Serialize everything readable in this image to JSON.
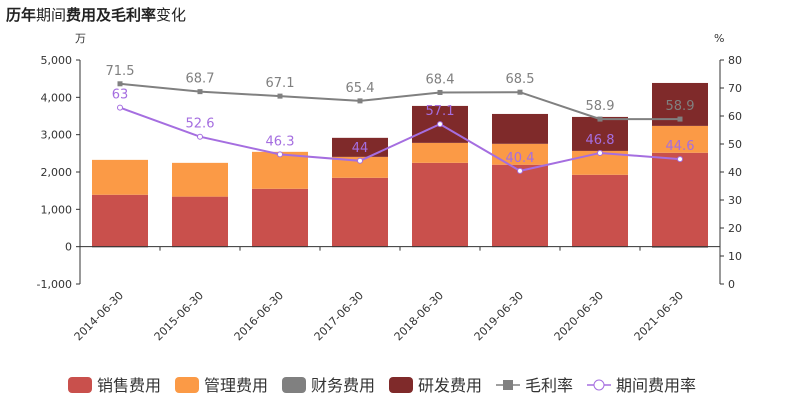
{
  "chart_data": {
    "type": "bar",
    "title_parts": [
      "历年",
      "期间",
      "费用及毛利率",
      "变化"
    ],
    "title": "历年期间费用及毛利率变化",
    "left_unit": "万",
    "right_unit": "%",
    "categories": [
      "2014-06-30",
      "2015-06-30",
      "2016-06-30",
      "2017-06-30",
      "2018-06-30",
      "2019-06-30",
      "2020-06-30",
      "2021-06-30"
    ],
    "left_ylim": [
      -1000,
      5000
    ],
    "left_ticks": [
      "-1,000",
      "0",
      "1,000",
      "2,000",
      "3,000",
      "4,000",
      "5,000"
    ],
    "left_tick_values": [
      -1000,
      0,
      1000,
      2000,
      3000,
      4000,
      5000
    ],
    "right_ylim": [
      0,
      80
    ],
    "right_ticks": [
      "0",
      "10",
      "20",
      "30",
      "40",
      "50",
      "60",
      "70",
      "80"
    ],
    "right_tick_values": [
      0,
      10,
      20,
      30,
      40,
      50,
      60,
      70,
      80
    ],
    "series": [
      {
        "name": "销售费用",
        "kind": "bar",
        "color": "#c9504c",
        "values": [
          1390,
          1340,
          1550,
          1845,
          2245,
          2195,
          1925,
          2515
        ]
      },
      {
        "name": "管理费用",
        "kind": "bar",
        "color": "#fb9a46",
        "values": [
          935,
          905,
          990,
          560,
          535,
          560,
          640,
          720
        ]
      },
      {
        "name": "财务费用",
        "kind": "bar",
        "color": "#808080",
        "values": [
          -20,
          -15,
          -10,
          -5,
          -10,
          -10,
          -10,
          -30
        ]
      },
      {
        "name": "研发费用",
        "kind": "bar",
        "color": "#7f2a2a",
        "values": [
          0,
          0,
          0,
          510,
          990,
          800,
          910,
          1150
        ]
      },
      {
        "name": "毛利率",
        "kind": "line",
        "color": "#808080",
        "values": [
          71.5,
          68.7,
          67.1,
          65.4,
          68.4,
          68.5,
          58.9,
          58.9
        ],
        "labels": [
          "71.5",
          "68.7",
          "67.1",
          "65.4",
          "68.4",
          "68.5",
          "58.9",
          "58.9"
        ]
      },
      {
        "name": "期间费用率",
        "kind": "line",
        "color": "#a56ee0",
        "values": [
          63,
          52.6,
          46.3,
          44,
          57.1,
          40.4,
          46.8,
          44.6
        ],
        "labels": [
          "63",
          "52.6",
          "46.3",
          "44",
          "57.1",
          "40.4",
          "46.8",
          "44.6"
        ]
      }
    ],
    "legend_position": "bottom"
  }
}
